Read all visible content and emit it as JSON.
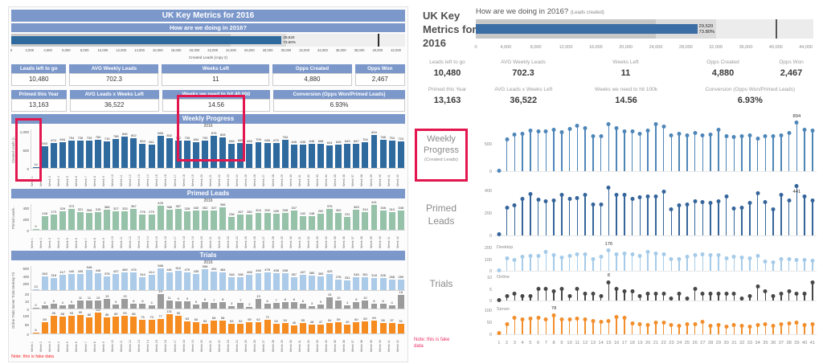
{
  "left": {
    "title": "UK Key Metrics for 2016",
    "subtitle": "How are we doing in 2016?",
    "year": "2016",
    "section_weekly": "Weekly Progress",
    "section_primed": "Primed Leads",
    "section_trials": "Trials",
    "trials_axis_title": "Online Trials  Server Trials  Desktop Tri.",
    "note": "Note: this is fake data",
    "kpis_row1": [
      {
        "label": "Leads left to go",
        "value": "10,480"
      },
      {
        "label": "AVG Weekly Leads",
        "value": "702.3"
      },
      {
        "label": "Weeks Left",
        "value": "11"
      },
      {
        "label": "Opps Created",
        "value": "4,880"
      },
      {
        "label": "Opps Won",
        "value": "2,467"
      }
    ],
    "kpis_row2": [
      {
        "label": "Primed this Year",
        "value": "13,163"
      },
      {
        "label": "AVG Leads x Weeks Left",
        "value": "36,522"
      },
      {
        "label": "Weeks we need to hit 40,000",
        "value": "14.56"
      },
      {
        "label": "Conversion (Opps Won/Primed Leads)",
        "value": "6.93%"
      }
    ]
  },
  "right": {
    "title": "UK Key Metrics for 2016",
    "subtitle": "How are we doing in 2016?",
    "subtitle_note": "(Leads created)",
    "label_weekly": "Weekly Progress",
    "label_weekly_sub": "(Created Leads)",
    "label_primed": "Primed Leads",
    "label_trials": "Trials",
    "note_line1": "Note: this is fake",
    "note_line2": "data",
    "kpis_row1": [
      {
        "label": "Leads left to go",
        "value": "10,480"
      },
      {
        "label": "AVG Weekly Leads",
        "value": "702.3"
      },
      {
        "label": "Weeks Left",
        "value": "11"
      },
      {
        "label": "Opps Created",
        "value": "4,880"
      },
      {
        "label": "Opps Won",
        "value": "2,467"
      }
    ],
    "kpis_row2": [
      {
        "label": "Primed this Year",
        "value": "13,163"
      },
      {
        "label": "AVG Leads x Weeks Left",
        "value": "36,522"
      },
      {
        "label": "Weeks we need to hit 100k",
        "value": "14.56"
      },
      {
        "label": "Conversion (Opps Won/Primed Leads)",
        "value": "6.93%"
      }
    ]
  },
  "chart_data": [
    {
      "name": "bullet-left",
      "type": "bar",
      "title": "How are we doing in 2016?",
      "value": 29520,
      "value_label": "29,520",
      "pct_label": "73.80%",
      "target": 40000,
      "axis_max": 43000,
      "bands": [
        24000,
        30000
      ],
      "caption": "Created Leads (copy 2)",
      "axis_ticks": [
        "0",
        "2,000",
        "4,000",
        "6,000",
        "8,000",
        "10,000",
        "12,000",
        "14,000",
        "16,000",
        "18,000",
        "20,000",
        "22,000",
        "24,000",
        "26,000",
        "28,000",
        "30,000",
        "32,000",
        "34,000",
        "36,000",
        "38,000",
        "40,000",
        "42,000"
      ]
    },
    {
      "name": "weekly-progress-left",
      "type": "bar",
      "title": "Weekly Progress",
      "year": "2016",
      "ylabel": "Created Leads (c..",
      "yticks": [
        "1,000",
        "500",
        "0"
      ],
      "ylim": [
        0,
        1050
      ],
      "categories": [
        "Week 1",
        "Week 2",
        "Week 3",
        "Week 4",
        "Week 5",
        "Week 6",
        "Week 7",
        "Week 8",
        "Week 9",
        "Week 10",
        "Week 11",
        "Week 12",
        "Week 13",
        "Week 14",
        "Week 15",
        "Week 16",
        "Week 17",
        "Week 18",
        "Week 19",
        "Week 20",
        "Week 21",
        "Week 22",
        "Week 23",
        "Week 24",
        "Week 25",
        "Week 26",
        "Week 27",
        "Week 28",
        "Week 29",
        "Week 30",
        "Week 31",
        "Week 32",
        "Week 33",
        "Week 34",
        "Week 35",
        "Week 36",
        "Week 37",
        "Week 38",
        "Week 39",
        "Week 40",
        "Week 41",
        "Week 42"
      ],
      "values": [
        14,
        593,
        674,
        694,
        754,
        735,
        739,
        760,
        715,
        788,
        846,
        802,
        654,
        641,
        866,
        802,
        742,
        735,
        694,
        753,
        876,
        828,
        658,
        689,
        658,
        709,
        668,
        670,
        764,
        645,
        635,
        648,
        658,
        604,
        645,
        649,
        667,
        704,
        894,
        768,
        754,
        724
      ]
    },
    {
      "name": "primed-leads-left",
      "type": "bar",
      "title": "Primed Leads",
      "year": "2016",
      "ylabel": "Primed Leads ..",
      "yticks": [
        "400",
        "200",
        "0"
      ],
      "ylim": [
        0,
        460
      ],
      "values": [
        9,
        248,
        273,
        329,
        373,
        321,
        308,
        315,
        366,
        327,
        333,
        367,
        276,
        279,
        425,
        366,
        367,
        328,
        340,
        352,
        347,
        396,
        236,
        267,
        280,
        304,
        300,
        289,
        308,
        347,
        242,
        248,
        292,
        376,
        302,
        231,
        363,
        314,
        441,
        348,
        310,
        348
      ]
    },
    {
      "name": "desktop-trials-left",
      "type": "bar",
      "yticks": [
        "600",
        "400",
        "200"
      ],
      "ylim": [
        0,
        650
      ],
      "values": [
        13,
        363,
        318,
        417,
        440,
        435,
        548,
        446,
        378,
        437,
        469,
        476,
        344,
        414,
        588,
        481,
        510,
        479,
        435,
        558,
        494,
        484,
        348,
        338,
        408,
        446,
        478,
        458,
        458,
        357,
        407,
        380,
        359,
        425,
        276,
        251,
        348,
        351,
        318,
        328,
        288,
        289
      ]
    },
    {
      "name": "server-trials-left",
      "type": "bar",
      "yticks": [
        "20",
        "10",
        "0"
      ],
      "ylim": [
        0,
        21
      ],
      "values": [
        0,
        4,
        6,
        4,
        5,
        11,
        11,
        10,
        13,
        5,
        13,
        6,
        6,
        4,
        19,
        11,
        9,
        9,
        5,
        8,
        7,
        8,
        3,
        7,
        2,
        13,
        6,
        7,
        8,
        8,
        6,
        3,
        5,
        15,
        10,
        4,
        8,
        10,
        6,
        6,
        4,
        18
      ]
    },
    {
      "name": "online-trials-left",
      "type": "bar",
      "yticks": [
        "100",
        "50",
        "0"
      ],
      "ylim": [
        0,
        120
      ],
      "values": [
        6,
        59,
        96,
        88,
        93,
        99,
        86,
        112,
        86,
        89,
        93,
        88,
        75,
        73,
        77,
        101,
        95,
        63,
        60,
        53,
        68,
        68,
        53,
        52,
        59,
        62,
        72,
        52,
        54,
        45,
        55,
        48,
        47,
        54,
        59,
        49,
        60,
        63,
        69,
        56,
        57,
        51
      ]
    },
    {
      "name": "bullet-right",
      "type": "bar",
      "title": "How are we doing in 2016?",
      "subtitle": "(Leads created)",
      "value": 29520,
      "value_label": "29,520",
      "pct_label": "73.80%",
      "target": 40000,
      "axis_max": 45000,
      "bands": [
        24000,
        32000
      ],
      "axis_ticks": [
        "0",
        "4,000",
        "8,000",
        "12,000",
        "16,000",
        "20,000",
        "24,000",
        "28,000",
        "32,000",
        "36,000",
        "40,000",
        "44,000"
      ]
    },
    {
      "name": "weekly-progress-right",
      "type": "lollipop",
      "yticks": [
        "500",
        "0"
      ],
      "ylim": [
        0,
        950
      ],
      "annotation": {
        "index": 39,
        "text": "894",
        "pos": "above"
      },
      "values": [
        14,
        593,
        674,
        694,
        754,
        735,
        739,
        760,
        715,
        788,
        846,
        802,
        654,
        641,
        866,
        802,
        742,
        735,
        694,
        753,
        876,
        828,
        658,
        689,
        658,
        709,
        668,
        670,
        764,
        645,
        635,
        648,
        658,
        604,
        645,
        649,
        667,
        704,
        894,
        768,
        754
      ]
    },
    {
      "name": "primed-leads-right",
      "type": "lollipop",
      "yticks": [
        "400",
        "200",
        "0"
      ],
      "ylim": [
        0,
        460
      ],
      "annotation": {
        "index": 39,
        "text": "441",
        "pos": "below"
      },
      "values": [
        9,
        248,
        273,
        329,
        373,
        321,
        308,
        315,
        366,
        327,
        333,
        367,
        276,
        279,
        425,
        366,
        367,
        328,
        340,
        352,
        347,
        396,
        236,
        267,
        280,
        304,
        300,
        289,
        308,
        347,
        242,
        248,
        292,
        376,
        302,
        231,
        363,
        314,
        441,
        348,
        310
      ]
    },
    {
      "name": "desktop-trials-right",
      "type": "lollipop",
      "label": "Desktop",
      "yticks": [
        "200",
        "100",
        "0"
      ],
      "ylim": [
        0,
        210
      ],
      "annotation": {
        "index": 15,
        "text": "176",
        "pos": "above"
      },
      "values": [
        4,
        109,
        95,
        125,
        132,
        131,
        164,
        134,
        113,
        131,
        141,
        143,
        103,
        124,
        176,
        144,
        153,
        144,
        131,
        167,
        148,
        145,
        104,
        101,
        122,
        134,
        143,
        137,
        137,
        107,
        122,
        114,
        108,
        128,
        83,
        75,
        104,
        105,
        95,
        98,
        87
      ]
    },
    {
      "name": "online-trials-right",
      "type": "lollipop",
      "label": "Online",
      "yticks": [
        "10",
        "5",
        "0"
      ],
      "ylim": [
        0,
        10.5
      ],
      "annotation": {
        "index": 15,
        "text": "8",
        "pos": "above"
      },
      "values": [
        0,
        2,
        3,
        2,
        2,
        5,
        5,
        4,
        5,
        2,
        5,
        3,
        3,
        2,
        8,
        5,
        4,
        4,
        2,
        3,
        3,
        3,
        1,
        3,
        1,
        5,
        3,
        3,
        3,
        3,
        3,
        1,
        2,
        6,
        4,
        2,
        3,
        4,
        3,
        3,
        8
      ]
    },
    {
      "name": "server-trials-right",
      "type": "lollipop",
      "label": "Server",
      "yticks": [
        "100",
        "50",
        "0"
      ],
      "ylim": [
        0,
        105
      ],
      "annotation": {
        "index": 8,
        "text": "78",
        "pos": "above"
      },
      "categories": [
        "1",
        "2",
        "3",
        "4",
        "5",
        "6",
        "7",
        "8",
        "9",
        "10",
        "11",
        "12",
        "13",
        "14",
        "15",
        "16",
        "17",
        "18",
        "19",
        "20",
        "21",
        "22",
        "23",
        "24",
        "25",
        "26",
        "27",
        "28",
        "29",
        "30",
        "31",
        "32",
        "33",
        "34",
        "35",
        "36",
        "37",
        "38",
        "39",
        "40",
        "41"
      ],
      "values": [
        4,
        41,
        67,
        62,
        65,
        69,
        60,
        78,
        60,
        62,
        65,
        62,
        53,
        51,
        54,
        71,
        67,
        44,
        42,
        37,
        48,
        48,
        37,
        36,
        41,
        43,
        50,
        36,
        38,
        32,
        39,
        34,
        33,
        38,
        41,
        34,
        42,
        44,
        48,
        39,
        40
      ]
    }
  ]
}
